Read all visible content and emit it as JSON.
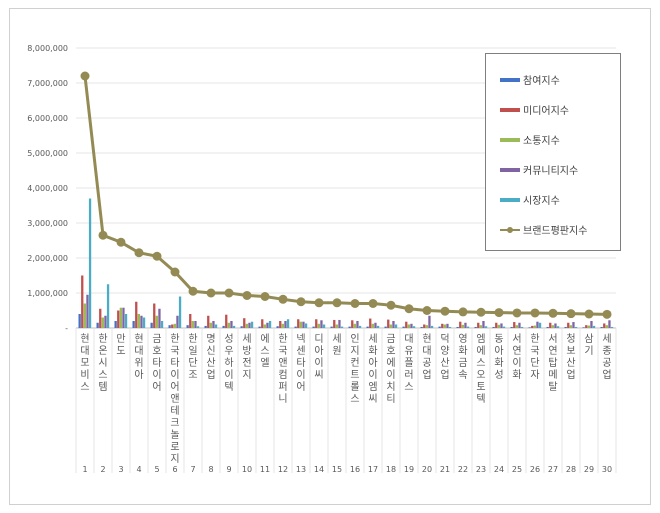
{
  "chart_data": {
    "type": "bar+line",
    "categories": [
      "현대모비스",
      "한온시스템",
      "만도",
      "현대위아",
      "금호타이어",
      "한국타이어앤테크놀로지",
      "한일단조",
      "명신산업",
      "성우하이텍",
      "세방전지",
      "에스엘",
      "한국앤컴퍼니",
      "넥센타이어",
      "디아이씨",
      "세원",
      "인지컨트롤스",
      "세화아이엠씨",
      "금호에이치티",
      "대유플러스",
      "현대공업",
      "덕양산업",
      "영화금속",
      "엠에스오토텍",
      "동아화성",
      "서연이화",
      "한국단자",
      "서연탑메탈",
      "청보산업",
      "삼기",
      "세종공업"
    ],
    "ranks": [
      "1",
      "2",
      "3",
      "4",
      "5",
      "6",
      "7",
      "8",
      "9",
      "10",
      "11",
      "12",
      "13",
      "14",
      "15",
      "16",
      "17",
      "18",
      "19",
      "20",
      "21",
      "22",
      "23",
      "24",
      "25",
      "26",
      "27",
      "28",
      "29",
      "30"
    ],
    "ylim": [
      0,
      8000000
    ],
    "yticks": [
      "-",
      "1,000,000",
      "2,000,000",
      "3,000,000",
      "4,000,000",
      "5,000,000",
      "6,000,000",
      "7,000,000",
      "8,000,000"
    ],
    "grid": true,
    "legend_position": "right",
    "series": [
      {
        "name": "참여지수",
        "type": "bar",
        "color": "#4472c4",
        "values": [
          400000,
          150000,
          200000,
          200000,
          150000,
          80000,
          80000,
          60000,
          60000,
          50000,
          40000,
          50000,
          40000,
          40000,
          40000,
          40000,
          40000,
          40000,
          40000,
          30000,
          40000,
          30000,
          30000,
          30000,
          30000,
          20000,
          30000,
          30000,
          20000,
          30000
        ]
      },
      {
        "name": "미디어지수",
        "type": "bar",
        "color": "#c0504d",
        "values": [
          1500000,
          550000,
          500000,
          750000,
          700000,
          100000,
          400000,
          350000,
          380000,
          280000,
          250000,
          200000,
          250000,
          250000,
          230000,
          220000,
          270000,
          240000,
          180000,
          100000,
          120000,
          180000,
          150000,
          150000,
          170000,
          60000,
          150000,
          150000,
          80000,
          130000
        ]
      },
      {
        "name": "소통지수",
        "type": "bar",
        "color": "#9bbb59",
        "values": [
          700000,
          300000,
          580000,
          400000,
          350000,
          120000,
          200000,
          150000,
          150000,
          120000,
          100000,
          120000,
          180000,
          120000,
          100000,
          120000,
          120000,
          100000,
          100000,
          80000,
          100000,
          90000,
          80000,
          90000,
          80000,
          70000,
          80000,
          80000,
          70000,
          80000
        ]
      },
      {
        "name": "커뮤니티지수",
        "type": "bar",
        "color": "#8064a2",
        "values": [
          950000,
          350000,
          580000,
          350000,
          550000,
          350000,
          200000,
          200000,
          200000,
          150000,
          150000,
          200000,
          180000,
          220000,
          230000,
          200000,
          150000,
          200000,
          120000,
          350000,
          120000,
          150000,
          200000,
          130000,
          150000,
          180000,
          130000,
          170000,
          200000,
          220000
        ]
      },
      {
        "name": "시장지수",
        "type": "bar",
        "color": "#4bacc6",
        "values": [
          3700000,
          1250000,
          400000,
          300000,
          200000,
          900000,
          50000,
          100000,
          60000,
          180000,
          200000,
          250000,
          130000,
          100000,
          40000,
          60000,
          60000,
          100000,
          50000,
          60000,
          30000,
          40000,
          50000,
          40000,
          30000,
          150000,
          50000,
          30000,
          60000,
          30000
        ]
      },
      {
        "name": "브랜드평판지수",
        "type": "line",
        "color": "#948a54",
        "values": [
          7200000,
          2650000,
          2450000,
          2150000,
          2050000,
          1600000,
          1050000,
          1000000,
          1000000,
          930000,
          900000,
          820000,
          750000,
          720000,
          720000,
          700000,
          700000,
          650000,
          550000,
          500000,
          480000,
          460000,
          450000,
          440000,
          430000,
          430000,
          420000,
          410000,
          400000,
          390000
        ]
      }
    ]
  }
}
